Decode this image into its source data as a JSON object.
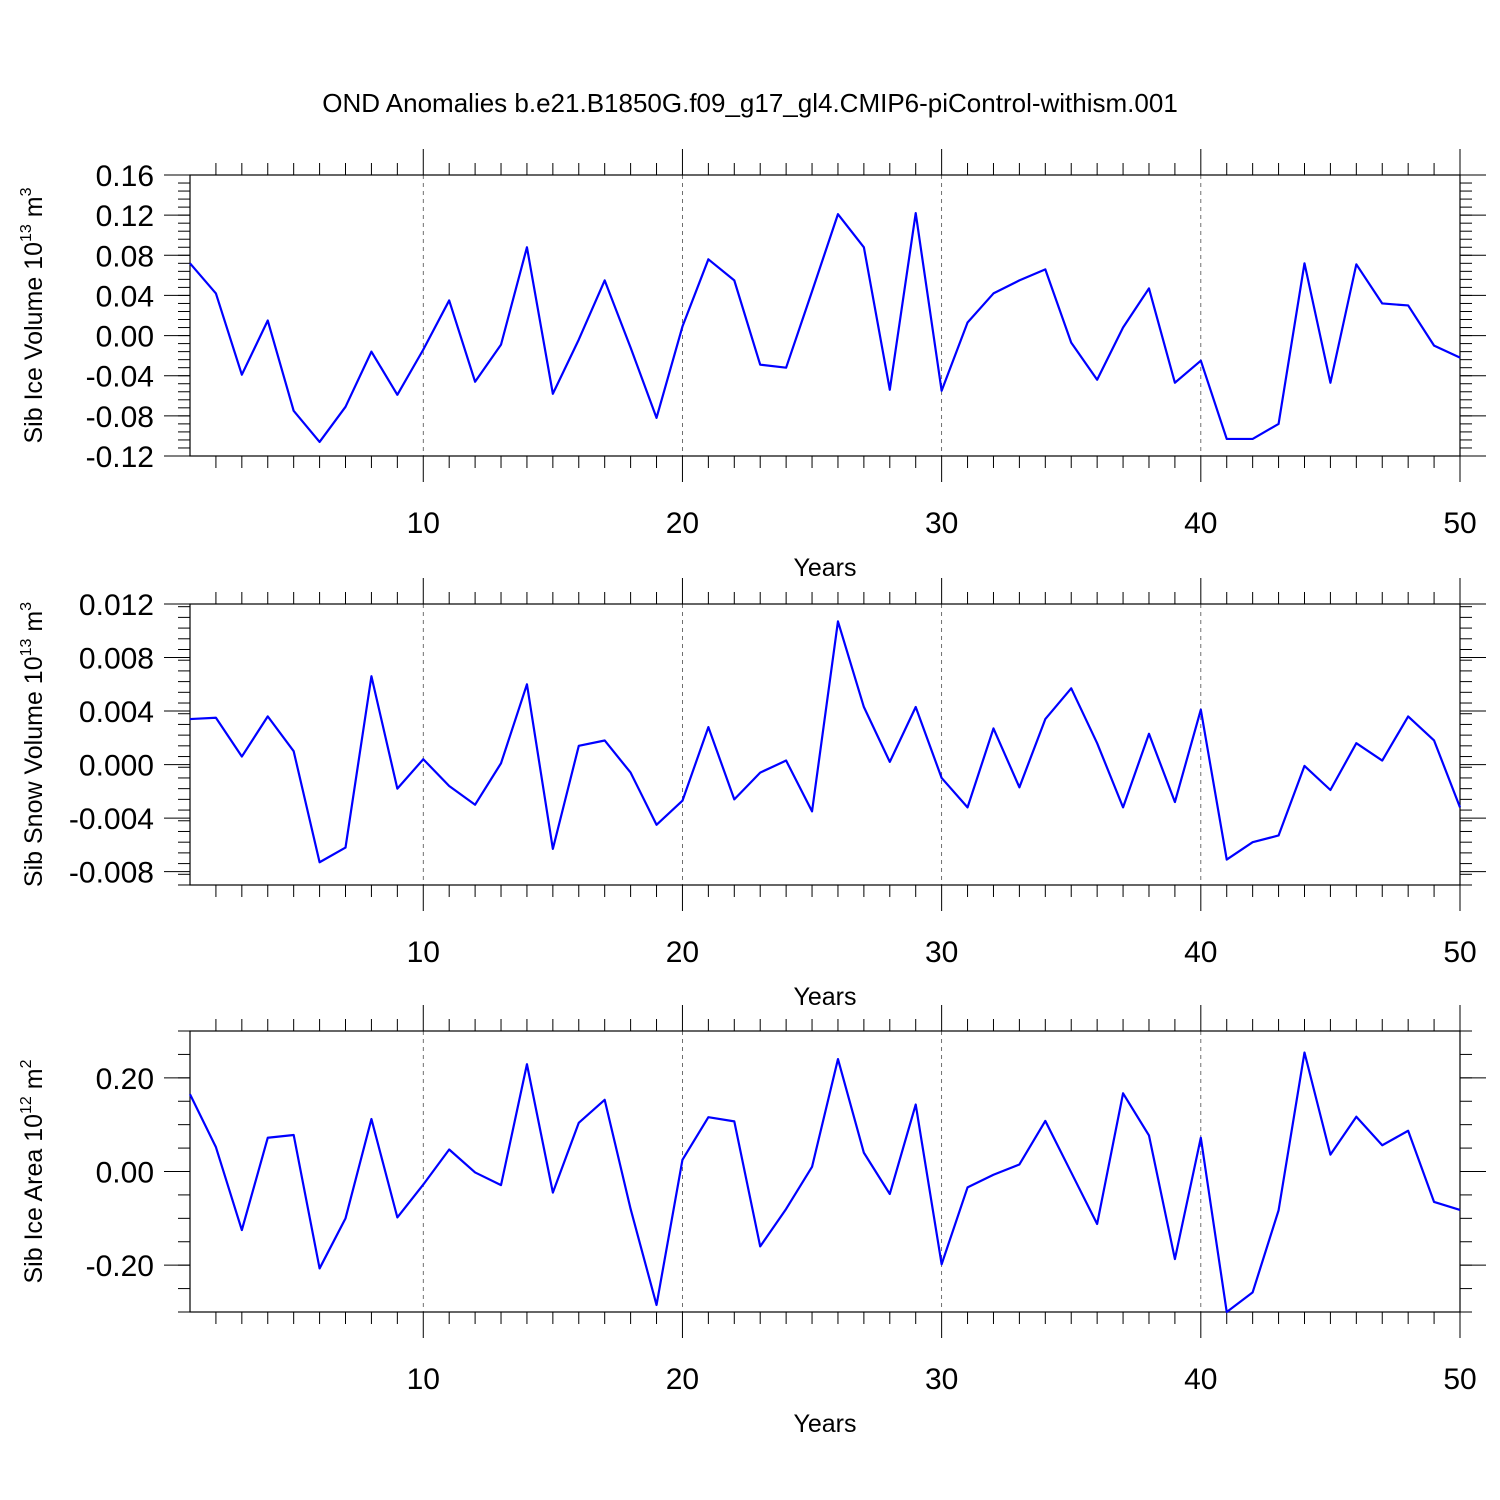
{
  "title": "OND Anomalies b.e21.B1850G.f09_g17_gl4.CMIP6-piControl-withism.001",
  "colors": {
    "line": "#0000ff",
    "axis": "#000000"
  },
  "chart_data": [
    {
      "type": "line",
      "xlabel": "Years",
      "ylabel_main": "Sib Ice Volume 10",
      "ylabel_sup": "13",
      "ylabel_unit": " m",
      "ylabel_unit_sup": "3",
      "xlim": [
        1,
        50
      ],
      "ylim": [
        -0.12,
        0.16
      ],
      "xticks": [
        10,
        20,
        30,
        40,
        50
      ],
      "yticks": [
        -0.12,
        -0.08,
        -0.04,
        0.0,
        0.04,
        0.08,
        0.12,
        0.16
      ],
      "ytick_labels": [
        "-0.12",
        "-0.08",
        "-0.04",
        "0.00",
        "0.04",
        "0.08",
        "0.12",
        "0.16"
      ],
      "yminor_step": 0.008,
      "vgrid": [
        10,
        20,
        30,
        40
      ],
      "grid": "vertical dashed at major x ticks",
      "x": [
        1,
        2,
        3,
        4,
        5,
        6,
        7,
        8,
        9,
        10,
        11,
        12,
        13,
        14,
        15,
        16,
        17,
        18,
        19,
        20,
        21,
        22,
        23,
        24,
        25,
        26,
        27,
        28,
        29,
        30,
        31,
        32,
        33,
        34,
        35,
        36,
        37,
        38,
        39,
        40,
        41,
        42,
        43,
        44,
        45,
        46,
        47,
        48,
        49,
        50
      ],
      "values": [
        0.072,
        0.042,
        -0.039,
        0.015,
        -0.075,
        -0.106,
        -0.071,
        -0.016,
        -0.059,
        -0.014,
        0.035,
        -0.046,
        -0.009,
        0.088,
        -0.058,
        -0.004,
        0.055,
        -0.012,
        -0.082,
        0.009,
        0.076,
        0.055,
        -0.029,
        -0.032,
        0.044,
        0.121,
        0.088,
        -0.054,
        0.122,
        -0.055,
        0.013,
        0.042,
        0.055,
        0.066,
        -0.007,
        -0.044,
        0.008,
        0.047,
        -0.047,
        -0.025,
        -0.103,
        -0.103,
        -0.088,
        0.072,
        -0.047,
        0.071,
        0.032,
        0.03,
        -0.01,
        -0.022
      ]
    },
    {
      "type": "line",
      "xlabel": "Years",
      "ylabel_main": "Sib Snow Volume 10",
      "ylabel_sup": "13",
      "ylabel_unit": " m",
      "ylabel_unit_sup": "3",
      "xlim": [
        1,
        50
      ],
      "ylim": [
        -0.009,
        0.012
      ],
      "xticks": [
        10,
        20,
        30,
        40,
        50
      ],
      "yticks": [
        -0.008,
        -0.004,
        0.0,
        0.004,
        0.008,
        0.012
      ],
      "ytick_labels": [
        "-0.008",
        "-0.004",
        "0.000",
        "0.004",
        "0.008",
        "0.012"
      ],
      "yminor_step": 0.0008,
      "vgrid": [
        10,
        20,
        30,
        40
      ],
      "grid": "vertical dashed at major x ticks",
      "x": [
        1,
        2,
        3,
        4,
        5,
        6,
        7,
        8,
        9,
        10,
        11,
        12,
        13,
        14,
        15,
        16,
        17,
        18,
        19,
        20,
        21,
        22,
        23,
        24,
        25,
        26,
        27,
        28,
        29,
        30,
        31,
        32,
        33,
        34,
        35,
        36,
        37,
        38,
        39,
        40,
        41,
        42,
        43,
        44,
        45,
        46,
        47,
        48,
        49,
        50
      ],
      "values": [
        0.0034,
        0.0035,
        0.0006,
        0.0036,
        0.001,
        -0.0073,
        -0.0062,
        0.0066,
        -0.0018,
        0.0004,
        -0.0016,
        -0.003,
        0.0001,
        0.006,
        -0.0063,
        0.0014,
        0.0018,
        -0.0006,
        -0.0045,
        -0.0027,
        0.0028,
        -0.0026,
        -0.0006,
        0.0003,
        -0.0035,
        0.0107,
        0.0043,
        0.0002,
        0.0043,
        -0.001,
        -0.0032,
        0.0027,
        -0.0017,
        0.0034,
        0.0057,
        0.0016,
        -0.0032,
        0.0023,
        -0.0028,
        0.0041,
        -0.0071,
        -0.0058,
        -0.0053,
        -0.0001,
        -0.0019,
        0.0016,
        0.0003,
        0.0036,
        0.0018,
        -0.0032
      ]
    },
    {
      "type": "line",
      "xlabel": "Years",
      "ylabel_main": "Sib Ice Area 10",
      "ylabel_sup": "12",
      "ylabel_unit": " m",
      "ylabel_unit_sup": "2",
      "xlim": [
        1,
        50
      ],
      "ylim": [
        -0.3,
        0.3
      ],
      "xticks": [
        10,
        20,
        30,
        40,
        50
      ],
      "yticks": [
        -0.2,
        0.0,
        0.2
      ],
      "ytick_labels": [
        "-0.20",
        "0.00",
        "0.20"
      ],
      "yminor_step": 0.05,
      "vgrid": [
        10,
        20,
        30,
        40
      ],
      "grid": "vertical dashed at major x ticks",
      "x": [
        1,
        2,
        3,
        4,
        5,
        6,
        7,
        8,
        9,
        10,
        11,
        12,
        13,
        14,
        15,
        16,
        17,
        18,
        19,
        20,
        21,
        22,
        23,
        24,
        25,
        26,
        27,
        28,
        29,
        30,
        31,
        32,
        33,
        34,
        35,
        36,
        37,
        38,
        39,
        40,
        41,
        42,
        43,
        44,
        45,
        46,
        47,
        48,
        49,
        50
      ],
      "values": [
        0.165,
        0.052,
        -0.125,
        0.072,
        0.078,
        -0.207,
        -0.1,
        0.112,
        -0.098,
        -0.028,
        0.047,
        -0.002,
        -0.029,
        0.229,
        -0.045,
        0.104,
        0.153,
        -0.08,
        -0.285,
        0.025,
        0.116,
        0.107,
        -0.16,
        -0.08,
        0.01,
        0.24,
        0.04,
        -0.048,
        0.143,
        -0.198,
        -0.034,
        -0.007,
        0.015,
        0.108,
        -0.002,
        -0.112,
        0.167,
        0.077,
        -0.187,
        0.072,
        -0.3,
        -0.258,
        -0.083,
        0.254,
        0.036,
        0.117,
        0.056,
        0.087,
        -0.065,
        -0.082
      ]
    }
  ]
}
